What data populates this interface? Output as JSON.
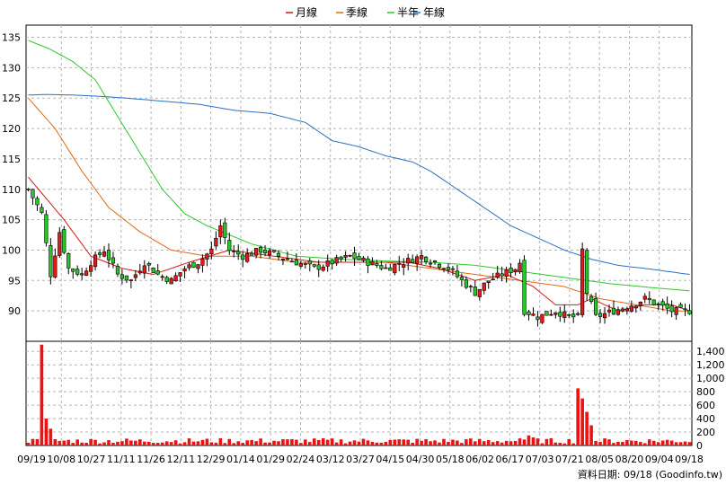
{
  "chart_data": {
    "type": "candlestick",
    "legend": [
      {
        "label": "月線",
        "color": "#d11a1a"
      },
      {
        "label": "季線",
        "color": "#e06a12"
      },
      {
        "label": "半年",
        "color": "#2ec82e"
      },
      {
        "label": "年線",
        "color": "#2a6fc4"
      }
    ],
    "price_axis": {
      "min": 85,
      "max": 137,
      "ticks": [
        90,
        95,
        100,
        105,
        110,
        115,
        120,
        125,
        130,
        135
      ]
    },
    "volume_axis": {
      "min": 0,
      "max": 1550,
      "ticks": [
        "0",
        "200",
        "400",
        "600",
        "800",
        "1,000",
        "1,200",
        "1,400"
      ]
    },
    "x_labels": [
      "09/19",
      "10/08",
      "10/27",
      "11/11",
      "11/26",
      "12/11",
      "12/29",
      "01/14",
      "01/29",
      "02/24",
      "03/12",
      "03/27",
      "04/15",
      "04/30",
      "05/18",
      "06/02",
      "06/17",
      "07/03",
      "07/21",
      "08/05",
      "08/20",
      "09/04",
      "09/18"
    ],
    "close_anchors": [
      [
        0,
        110
      ],
      [
        3,
        106
      ],
      [
        5,
        96
      ],
      [
        7,
        103
      ],
      [
        9,
        97
      ],
      [
        12,
        96
      ],
      [
        14,
        98
      ],
      [
        17,
        100
      ],
      [
        20,
        96
      ],
      [
        23,
        95
      ],
      [
        26,
        98
      ],
      [
        29,
        96
      ],
      [
        32,
        95
      ],
      [
        35,
        97
      ],
      [
        38,
        98
      ],
      [
        41,
        100
      ],
      [
        43,
        104
      ],
      [
        45,
        100
      ],
      [
        48,
        99
      ],
      [
        52,
        100
      ],
      [
        56,
        99
      ],
      [
        60,
        98
      ],
      [
        64,
        97
      ],
      [
        68,
        98
      ],
      [
        72,
        99
      ],
      [
        76,
        98
      ],
      [
        80,
        97
      ],
      [
        84,
        98
      ],
      [
        88,
        99
      ],
      [
        91,
        98
      ],
      [
        94,
        97
      ],
      [
        97,
        95
      ],
      [
        100,
        93
      ],
      [
        103,
        95
      ],
      [
        106,
        96
      ],
      [
        109,
        97
      ],
      [
        110,
        98
      ],
      [
        111,
        90
      ],
      [
        114,
        89
      ],
      [
        118,
        90
      ],
      [
        121,
        89
      ],
      [
        123,
        89
      ],
      [
        124,
        100
      ],
      [
        125,
        93
      ],
      [
        127,
        89
      ],
      [
        131,
        90
      ],
      [
        135,
        91
      ],
      [
        138,
        92
      ],
      [
        141,
        91
      ],
      [
        144,
        90
      ],
      [
        148,
        90
      ]
    ],
    "ma_month": [
      [
        0,
        112
      ],
      [
        8,
        105
      ],
      [
        14,
        99
      ],
      [
        21,
        97
      ],
      [
        28,
        96
      ],
      [
        36,
        98
      ],
      [
        45,
        100
      ],
      [
        55,
        99
      ],
      [
        65,
        98
      ],
      [
        75,
        98
      ],
      [
        85,
        98
      ],
      [
        92,
        97
      ],
      [
        100,
        95
      ],
      [
        107,
        96
      ],
      [
        113,
        94
      ],
      [
        118,
        91
      ],
      [
        123,
        91
      ],
      [
        126,
        92
      ],
      [
        132,
        90
      ],
      [
        138,
        91
      ],
      [
        144,
        91
      ],
      [
        148,
        90
      ]
    ],
    "ma_quarter": [
      [
        0,
        125
      ],
      [
        6,
        120
      ],
      [
        12,
        113
      ],
      [
        18,
        107
      ],
      [
        25,
        103
      ],
      [
        32,
        100
      ],
      [
        40,
        99
      ],
      [
        50,
        99
      ],
      [
        60,
        98
      ],
      [
        70,
        98
      ],
      [
        80,
        98
      ],
      [
        90,
        97
      ],
      [
        100,
        96
      ],
      [
        110,
        95
      ],
      [
        120,
        94
      ],
      [
        128,
        92
      ],
      [
        136,
        91
      ],
      [
        144,
        90
      ],
      [
        148,
        90
      ]
    ],
    "ma_half": [
      [
        0,
        134.5
      ],
      [
        5,
        133
      ],
      [
        10,
        131
      ],
      [
        15,
        128
      ],
      [
        20,
        122
      ],
      [
        25,
        116
      ],
      [
        30,
        110
      ],
      [
        35,
        106
      ],
      [
        40,
        104
      ],
      [
        50,
        101
      ],
      [
        60,
        99
      ],
      [
        70,
        98.5
      ],
      [
        80,
        98.2
      ],
      [
        90,
        98
      ],
      [
        100,
        97.5
      ],
      [
        110,
        96.5
      ],
      [
        120,
        95.5
      ],
      [
        130,
        94.5
      ],
      [
        140,
        93.8
      ],
      [
        148,
        93.3
      ]
    ],
    "ma_year": [
      [
        0,
        125.5
      ],
      [
        4,
        125.6
      ],
      [
        10,
        125.5
      ],
      [
        16,
        125.3
      ],
      [
        22,
        125
      ],
      [
        30,
        124.5
      ],
      [
        38,
        124
      ],
      [
        46,
        123
      ],
      [
        54,
        122.5
      ],
      [
        62,
        121
      ],
      [
        68,
        118
      ],
      [
        74,
        117
      ],
      [
        80,
        115.5
      ],
      [
        86,
        114.5
      ],
      [
        90,
        113
      ],
      [
        96,
        110
      ],
      [
        102,
        107
      ],
      [
        108,
        104
      ],
      [
        114,
        102
      ],
      [
        120,
        100
      ],
      [
        126,
        98.5
      ],
      [
        132,
        97.5
      ],
      [
        140,
        96.8
      ],
      [
        148,
        96
      ]
    ],
    "volume_spikes": [
      [
        3,
        1500
      ],
      [
        4,
        400
      ],
      [
        5,
        250
      ],
      [
        123,
        850
      ],
      [
        124,
        700
      ],
      [
        125,
        500
      ],
      [
        126,
        300
      ],
      [
        112,
        150
      ],
      [
        113,
        120
      ]
    ],
    "bars": 149
  },
  "footer": "資料日期: 09/18 (Goodinfo.tw)"
}
